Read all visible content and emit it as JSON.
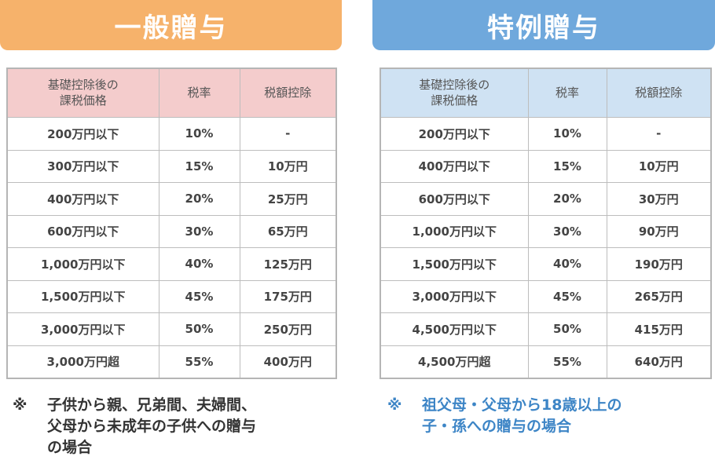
{
  "colors": {
    "general_accent": "#f6b26b",
    "general_header_bg": "#f4cccc",
    "special_accent": "#6fa8dc",
    "special_header_bg": "#cfe2f3",
    "special_note_text": "#3d85c6"
  },
  "general": {
    "title": "一般贈与",
    "headers": [
      "基礎控除後の\n課税価格",
      "税率",
      "税額控除"
    ],
    "rows": [
      [
        "200万円以下",
        "10%",
        "-"
      ],
      [
        "300万円以下",
        "15%",
        "10万円"
      ],
      [
        "400万円以下",
        "20%",
        "25万円"
      ],
      [
        "600万円以下",
        "30%",
        "65万円"
      ],
      [
        "1,000万円以下",
        "40%",
        "125万円"
      ],
      [
        "1,500万円以下",
        "45%",
        "175万円"
      ],
      [
        "3,000万円以下",
        "50%",
        "250万円"
      ],
      [
        "3,000万円超",
        "55%",
        "400万円"
      ]
    ],
    "note_mark": "※",
    "note_lines": [
      "子供から親、兄弟間、夫婦間、",
      "父母から未成年の子供への贈与",
      "の場合"
    ]
  },
  "special": {
    "title": "特例贈与",
    "headers": [
      "基礎控除後の\n課税価格",
      "税率",
      "税額控除"
    ],
    "rows": [
      [
        "200万円以下",
        "10%",
        "-"
      ],
      [
        "400万円以下",
        "15%",
        "10万円"
      ],
      [
        "600万円以下",
        "20%",
        "30万円"
      ],
      [
        "1,000万円以下",
        "30%",
        "90万円"
      ],
      [
        "1,500万円以下",
        "40%",
        "190万円"
      ],
      [
        "3,000万円以下",
        "45%",
        "265万円"
      ],
      [
        "4,500万円以下",
        "50%",
        "415万円"
      ],
      [
        "4,500万円超",
        "55%",
        "640万円"
      ]
    ],
    "note_mark": "※",
    "note_lines": [
      "祖父母・父母から18歳以上の",
      "子・孫への贈与の場合"
    ]
  }
}
